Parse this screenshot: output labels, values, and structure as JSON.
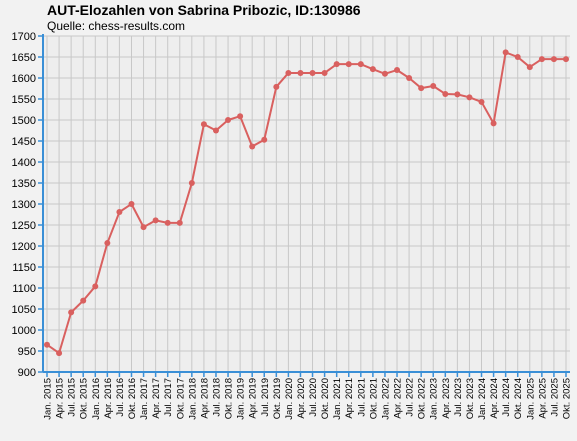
{
  "chart_data": {
    "type": "line",
    "title": "AUT-Elozahlen von Sabrina Pribozic, ID:130986",
    "subtitle": "Quelle: chess-results.com",
    "xlabel": "",
    "ylabel": "",
    "ylim": [
      900,
      1700
    ],
    "y_ticks": [
      900,
      950,
      1000,
      1050,
      1100,
      1150,
      1200,
      1250,
      1300,
      1350,
      1400,
      1450,
      1500,
      1550,
      1600,
      1650,
      1700
    ],
    "grid": true,
    "x": [
      "Jan. 2015",
      "Apr. 2015",
      "Jul. 2015",
      "Okt. 2015",
      "Jan. 2016",
      "Apr. 2016",
      "Jul. 2016",
      "Okt. 2016",
      "Jan. 2017",
      "Apr. 2017",
      "Jul. 2017",
      "Okt. 2017",
      "Jan. 2018",
      "Apr. 2018",
      "Jul. 2018",
      "Okt. 2018",
      "Jan. 2019",
      "Apr. 2019",
      "Jul. 2019",
      "Okt. 2019",
      "Jan. 2020",
      "Apr. 2020",
      "Jul. 2020",
      "Okt. 2020",
      "Jan. 2021",
      "Apr. 2021",
      "Jul. 2021",
      "Okt. 2021",
      "Jan. 2022",
      "Apr. 2022",
      "Jul. 2022",
      "Okt. 2022",
      "Jan. 2023",
      "Apr. 2023",
      "Jul. 2023",
      "Okt. 2023",
      "Jan. 2024",
      "Apr. 2024",
      "Jul. 2024",
      "Okt. 2024",
      "Jan. 2025",
      "Apr. 2025",
      "Jul. 2025",
      "Okt. 2025"
    ],
    "series": [
      {
        "values": [
          965,
          945,
          1042,
          1070,
          1104,
          1207,
          1281,
          1300,
          1245,
          1261,
          1255,
          1255,
          1350,
          1490,
          1475,
          1500,
          1509,
          1437,
          1453,
          1579,
          1612,
          1612,
          1612,
          1612,
          1633,
          1633,
          1633,
          1621,
          1610,
          1619,
          1600,
          1576,
          1581,
          1562,
          1561,
          1554,
          1543,
          1492,
          1661,
          1650,
          1626,
          1645,
          1645,
          1645
        ],
        "color": "#d9605f"
      }
    ],
    "colors": {
      "background": "#eeeeee",
      "grid": "#c8c8c8",
      "axis": "#3a8fd6",
      "line": "#d9605f"
    }
  }
}
